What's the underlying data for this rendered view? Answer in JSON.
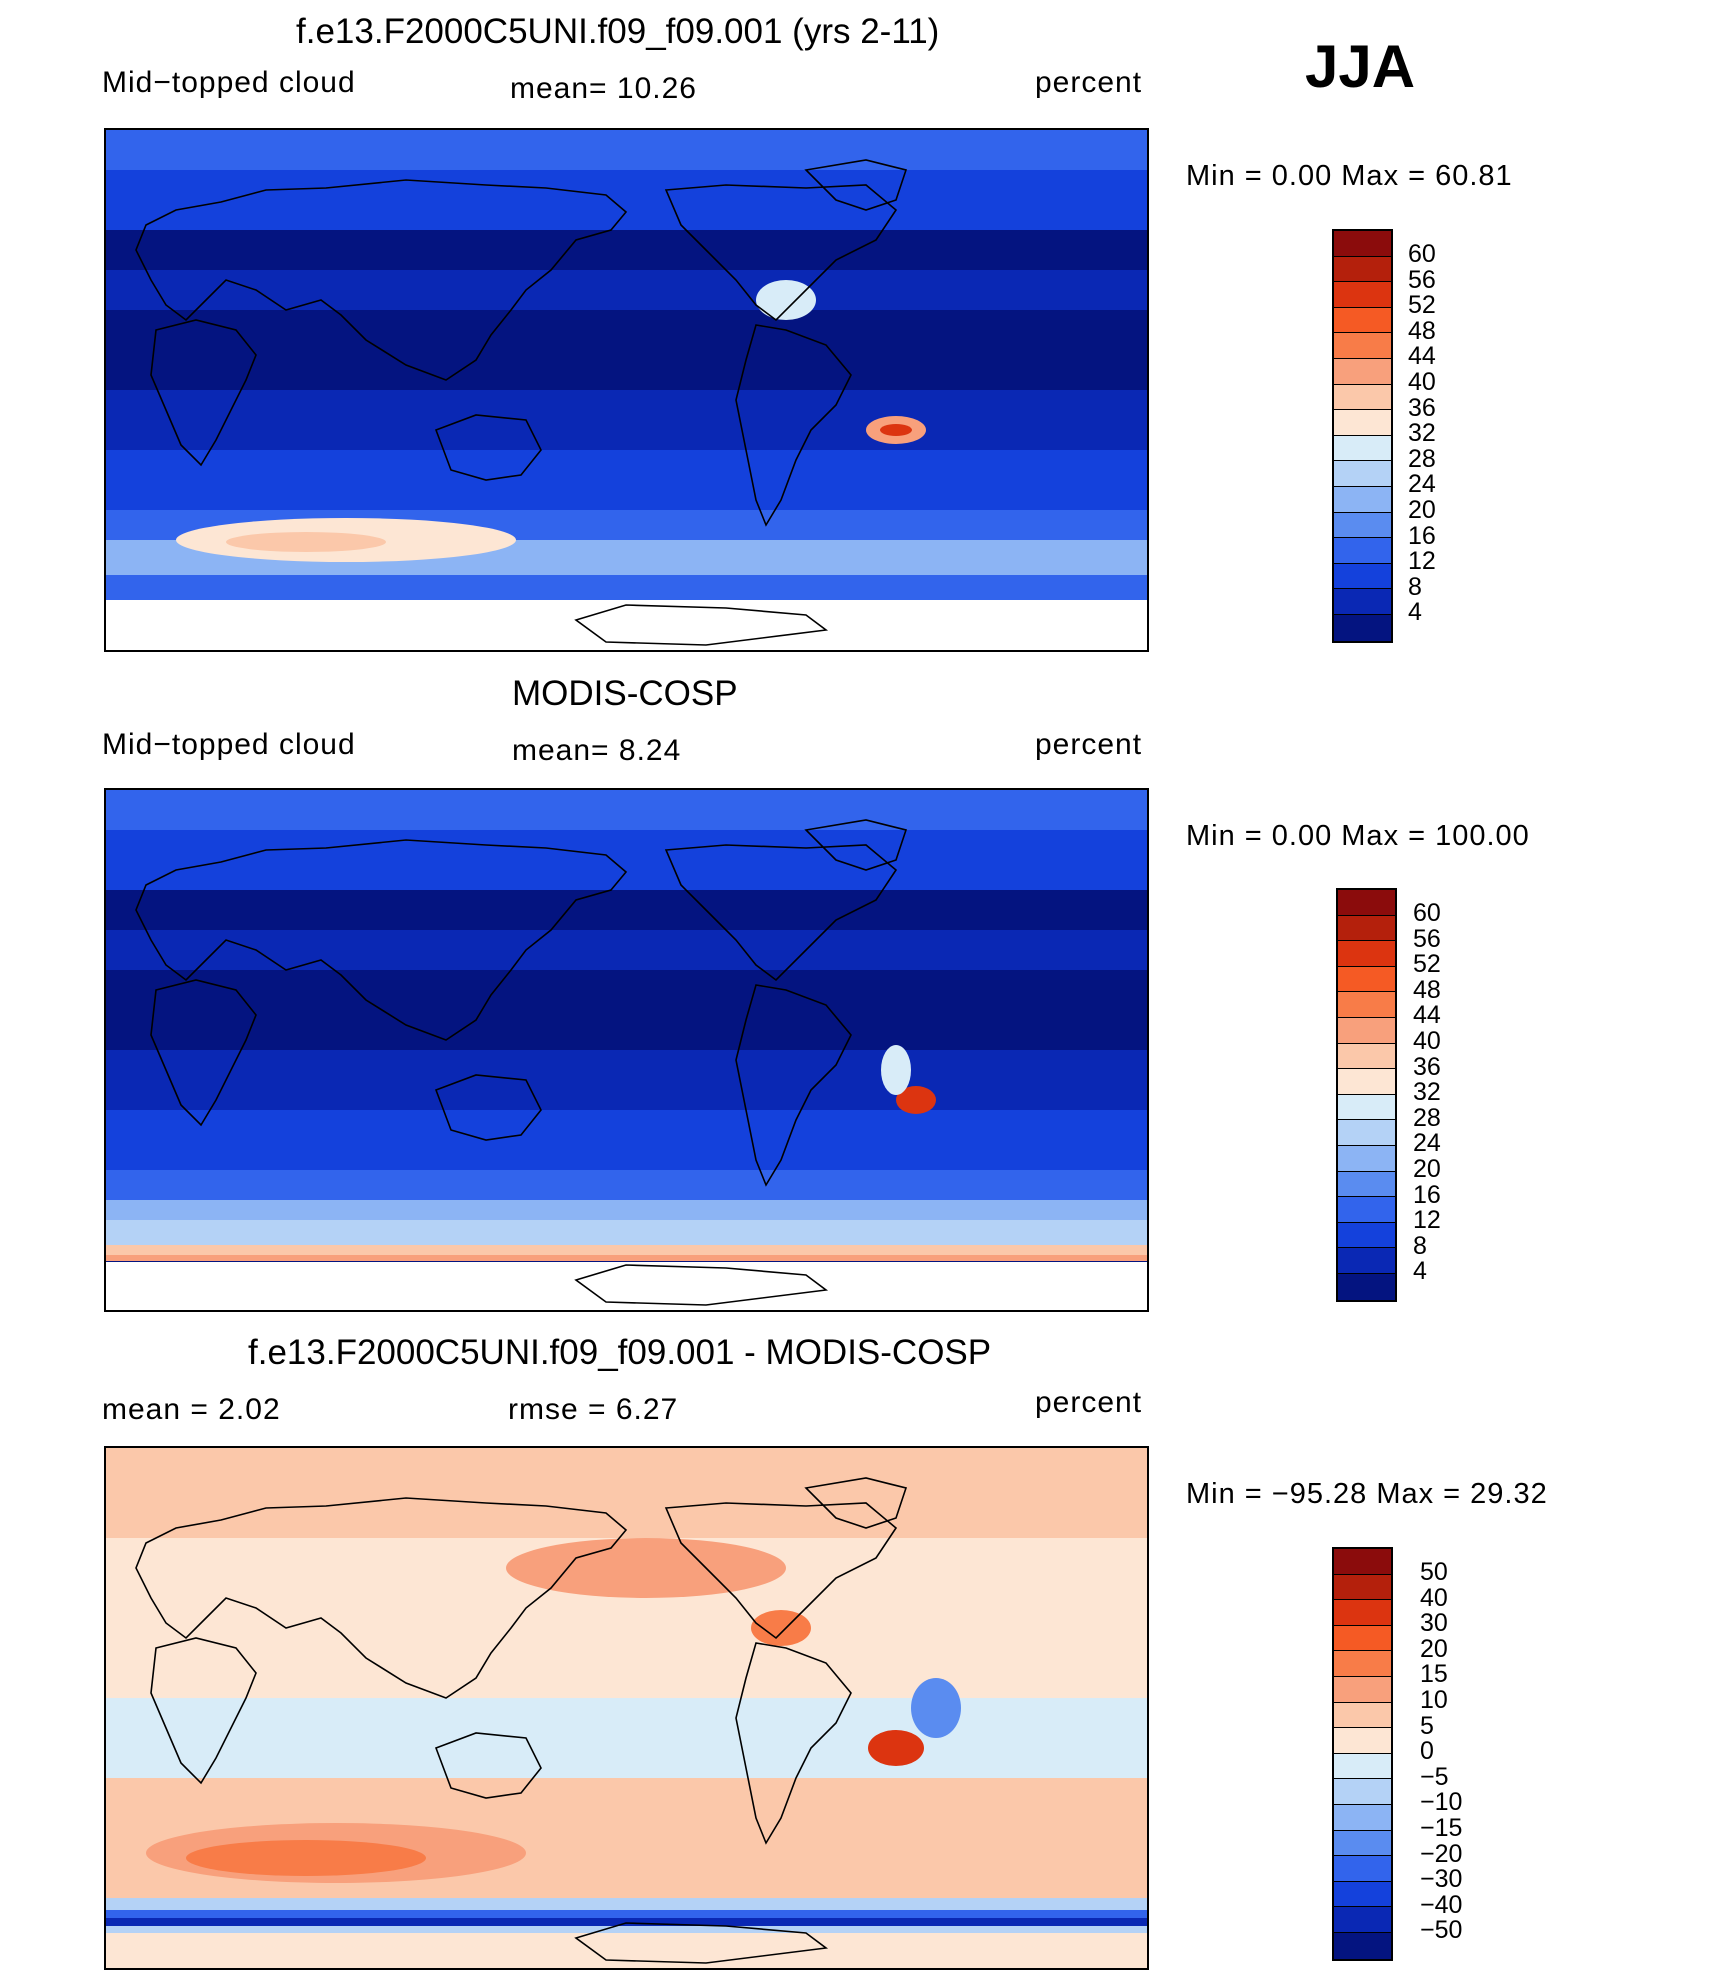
{
  "season": "JJA",
  "panels": [
    {
      "title": "f.e13.F2000C5UNI.f09_f09.001 (yrs 2-11)",
      "left_label": "Mid−topped  cloud",
      "center_label": "mean=   10.26",
      "right_label": "percent",
      "minmax": "Min  =     0.00  Max  =    60.81",
      "field_type": "model"
    },
    {
      "title": "MODIS-COSP",
      "left_label": "Mid−topped  cloud",
      "center_label": "mean=    8.24",
      "right_label": "percent",
      "minmax": "Min  =     0.00  Max  =  100.00",
      "field_type": "obs"
    },
    {
      "title": "f.e13.F2000C5UNI.f09_f09.001 - MODIS-COSP",
      "left_label": "mean  =     2.02",
      "center_label": "rmse  =     6.27",
      "right_label": "percent",
      "minmax": "Min  = −95.28  Max  =    29.32",
      "field_type": "diff"
    }
  ],
  "colorbars": {
    "absolute": {
      "labels": [
        "60",
        "56",
        "52",
        "48",
        "44",
        "40",
        "36",
        "32",
        "28",
        "24",
        "20",
        "16",
        "12",
        "8",
        "4"
      ],
      "colors": [
        "#8b0c0c",
        "#b4200c",
        "#dc3410",
        "#f55a24",
        "#f87c48",
        "#f8a07c",
        "#fbc8aa",
        "#fde6d4",
        "#d8ecf8",
        "#b4d2f6",
        "#8cb4f4",
        "#5a8cf0",
        "#3264ec",
        "#1441dc",
        "#0a28b4",
        "#041480"
      ]
    },
    "difference": {
      "labels": [
        "50",
        "40",
        "30",
        "20",
        "15",
        "10",
        "5",
        "0",
        "−5",
        "−10",
        "−15",
        "−20",
        "−30",
        "−40",
        "−50"
      ],
      "colors": [
        "#8b0c0c",
        "#b4200c",
        "#dc3410",
        "#f55a24",
        "#f87c48",
        "#f8a07c",
        "#fbc8aa",
        "#fde6d4",
        "#d8ecf8",
        "#b4d2f6",
        "#8cb4f4",
        "#5a8cf0",
        "#3264ec",
        "#1441dc",
        "#0a28b4",
        "#041480"
      ]
    }
  }
}
